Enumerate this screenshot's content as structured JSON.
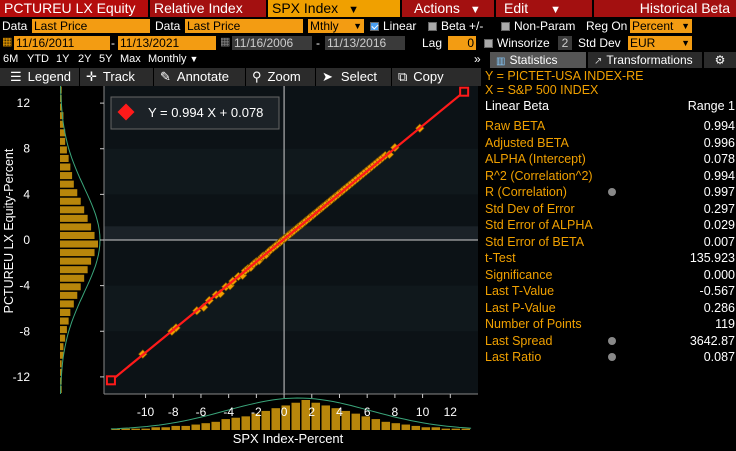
{
  "header": {
    "title": "PCTUREU LX Equity",
    "menu": [
      {
        "label": "Relative Index",
        "style": "red"
      },
      {
        "label": "SPX Index",
        "style": "yellow"
      },
      {
        "label": "Actions",
        "style": "red"
      },
      {
        "label": "Edit",
        "style": "red"
      },
      {
        "label": "Historical Beta",
        "style": "red"
      }
    ]
  },
  "row1": {
    "data_label_1": "Data",
    "data_value_1": "Last Price",
    "data_label_2": "Data",
    "data_value_2": "Last Price",
    "period": "Mthly",
    "linear_label": "Linear",
    "linear_checked": true,
    "beta_label": "Beta +/-",
    "nonparam_label": "Non-Param",
    "reg_on_label": "Reg On",
    "reg_on_value": "Percent"
  },
  "row2": {
    "start1": "11/16/2011",
    "end1": "11/13/2021",
    "start2": "11/16/2006",
    "end2": "11/13/2016",
    "lag_label": "Lag",
    "lag_value": "0",
    "winsorize_label": "Winsorize",
    "winsorize_value": "2",
    "stddev_label": "Std Dev",
    "currency": "EUR"
  },
  "row3": {
    "periods": [
      "6M",
      "YTD",
      "1Y",
      "2Y",
      "5Y",
      "Max"
    ],
    "frequency": "Monthly",
    "tab_statistics": "Statistics",
    "tab_transformations": "Transformations"
  },
  "toolbar": {
    "legend": "Legend",
    "track": "Track",
    "annotate": "Annotate",
    "zoom": "Zoom",
    "select": "Select",
    "copy": "Copy"
  },
  "stats": {
    "y_label": "Y = PICTET-USA INDEX-RE",
    "x_label": "X = S&P 500 INDEX",
    "section": "Linear Beta",
    "range": "Range 1",
    "rows": [
      {
        "name": "Raw BETA",
        "value": "0.994",
        "icon": false
      },
      {
        "name": "Adjusted BETA",
        "value": "0.996",
        "icon": false
      },
      {
        "name": "ALPHA (Intercept)",
        "value": "0.078",
        "icon": false
      },
      {
        "name": "R^2 (Correlation^2)",
        "value": "0.994",
        "icon": false
      },
      {
        "name": "R (Correlation)",
        "value": "0.997",
        "icon": true
      },
      {
        "name": "Std Dev of Error",
        "value": "0.297",
        "icon": false
      },
      {
        "name": "Std Error of ALPHA",
        "value": "0.029",
        "icon": false
      },
      {
        "name": "Std Error of BETA",
        "value": "0.007",
        "icon": false
      },
      {
        "name": "t-Test",
        "value": "135.923",
        "icon": false
      },
      {
        "name": "Significance",
        "value": "0.000",
        "icon": false
      },
      {
        "name": "Last T-Value",
        "value": "-0.567",
        "icon": false
      },
      {
        "name": "Last P-Value",
        "value": "0.286",
        "icon": false
      },
      {
        "name": "Number of Points",
        "value": "119",
        "icon": false
      },
      {
        "name": "Last Spread",
        "value": "3642.87",
        "icon": true
      },
      {
        "name": "Last Ratio",
        "value": "0.087",
        "icon": true
      }
    ]
  },
  "chart_data": {
    "type": "scatter",
    "equation": "Y = 0.994 X + 0.078",
    "xlabel": "SPX Index-Percent",
    "ylabel": "PCTUREU LX Equity-Percent",
    "xticks": [
      -10,
      -8,
      -6,
      -4,
      -2,
      0,
      2,
      4,
      6,
      8,
      10,
      12
    ],
    "yticks": [
      12,
      8,
      4,
      0,
      -4,
      -8,
      -12
    ],
    "xlim": [
      -13,
      14
    ],
    "ylim": [
      -13.5,
      13.5
    ],
    "regression": {
      "slope": 0.994,
      "intercept": 0.078,
      "x_range": [
        -12.5,
        13
      ]
    },
    "endpoints": [
      [
        -12.5,
        -12.3
      ],
      [
        13,
        13
      ]
    ],
    "x": [
      -12.5,
      -10.2,
      -8.1,
      -7.8,
      -6.3,
      -5.8,
      -5.4,
      -4.9,
      -4.6,
      -4.2,
      -3.9,
      -3.7,
      -3.3,
      -3.0,
      -2.8,
      -2.6,
      -2.4,
      -2.2,
      -2.0,
      -1.8,
      -1.6,
      -1.5,
      -1.3,
      -1.1,
      -1.0,
      -0.8,
      -0.6,
      -0.5,
      -0.3,
      -0.2,
      0.0,
      0.1,
      0.3,
      0.4,
      0.6,
      0.7,
      0.9,
      1.0,
      1.2,
      1.3,
      1.5,
      1.6,
      1.8,
      1.9,
      2.1,
      2.2,
      2.4,
      2.5,
      2.7,
      2.8,
      3.0,
      3.1,
      3.3,
      3.4,
      3.6,
      3.7,
      3.9,
      4.0,
      4.2,
      4.3,
      4.5,
      4.7,
      4.9,
      5.1,
      5.3,
      5.5,
      5.7,
      5.9,
      6.1,
      6.3,
      6.5,
      6.7,
      6.9,
      7.1,
      7.3,
      7.6,
      8.0,
      9.8,
      13.0
    ],
    "y": [
      -12.3,
      -10.0,
      -8.0,
      -7.7,
      -6.2,
      -5.9,
      -5.3,
      -4.8,
      -4.7,
      -4.1,
      -4.0,
      -3.6,
      -3.2,
      -3.1,
      -2.7,
      -2.5,
      -2.4,
      -2.1,
      -1.9,
      -1.8,
      -1.5,
      -1.4,
      -1.3,
      -1.0,
      -0.9,
      -0.7,
      -0.5,
      -0.4,
      -0.2,
      -0.1,
      0.1,
      0.2,
      0.4,
      0.5,
      0.7,
      0.8,
      1.0,
      1.1,
      1.3,
      1.4,
      1.6,
      1.7,
      1.9,
      2.0,
      2.2,
      2.3,
      2.5,
      2.6,
      2.8,
      2.9,
      3.1,
      3.2,
      3.4,
      3.5,
      3.7,
      3.8,
      4.0,
      4.1,
      4.3,
      4.4,
      4.6,
      4.8,
      5.0,
      5.2,
      5.4,
      5.6,
      5.8,
      6.0,
      6.2,
      6.4,
      6.6,
      6.8,
      7.0,
      7.2,
      7.4,
      7.5,
      8.1,
      9.8,
      13.0
    ],
    "x_histogram": [
      1,
      1,
      1,
      1,
      2,
      2,
      3,
      3,
      4,
      5,
      6,
      8,
      9,
      10,
      12,
      14,
      16,
      18,
      20,
      22,
      20,
      18,
      16,
      14,
      12,
      10,
      8,
      6,
      5,
      4,
      3,
      2,
      2,
      1,
      1,
      1
    ],
    "y_histogram": [
      1,
      1,
      1,
      2,
      2,
      3,
      3,
      4,
      5,
      6,
      7,
      8,
      10,
      12,
      14,
      16,
      18,
      20,
      22,
      20,
      18,
      16,
      14,
      12,
      10,
      8,
      6,
      5,
      4,
      3,
      2,
      2,
      1,
      1,
      1,
      1
    ],
    "colors": {
      "point": "#f0a000",
      "line": "#ff1a1a",
      "hist": "#b8860b",
      "normal": "#3aa57a"
    }
  }
}
